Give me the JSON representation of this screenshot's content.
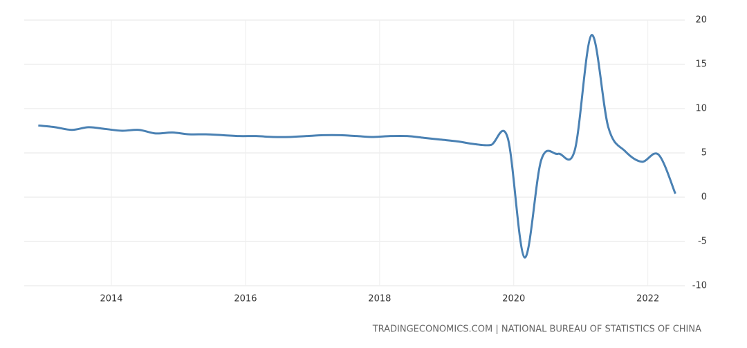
{
  "chart_data": {
    "type": "line",
    "source": "TRADINGECONOMICS.COM | NATIONAL BUREAU OF STATISTICS OF CHINA",
    "x": [
      2012.91,
      2013.16,
      2013.41,
      2013.66,
      2013.91,
      2014.16,
      2014.41,
      2014.66,
      2014.91,
      2015.16,
      2015.41,
      2015.66,
      2015.91,
      2016.16,
      2016.41,
      2016.66,
      2016.91,
      2017.16,
      2017.41,
      2017.66,
      2017.91,
      2018.16,
      2018.41,
      2018.66,
      2018.91,
      2019.16,
      2019.41,
      2019.66,
      2019.91,
      2020.16,
      2020.41,
      2020.66,
      2020.91,
      2021.16,
      2021.41,
      2021.66,
      2021.91,
      2022.16,
      2022.41
    ],
    "series": [
      {
        "color": "#4a81b3",
        "values": [
          8.1,
          7.9,
          7.6,
          7.9,
          7.7,
          7.5,
          7.6,
          7.2,
          7.3,
          7.1,
          7.1,
          7.0,
          6.9,
          6.9,
          6.8,
          6.8,
          6.9,
          7.0,
          7.0,
          6.9,
          6.8,
          6.9,
          6.9,
          6.7,
          6.5,
          6.3,
          6.0,
          5.9,
          6.7,
          -6.8,
          4.2,
          4.9,
          5.3,
          18.3,
          7.9,
          5.2,
          4.0,
          4.8,
          0.4
        ]
      }
    ],
    "xlim": [
      2012.7,
      2022.55
    ],
    "xticks": [
      2014,
      2016,
      2018,
      2020,
      2022
    ],
    "ylim": [
      -10,
      20
    ],
    "yticks": [
      -10,
      -5,
      0,
      5,
      10,
      15,
      20
    ],
    "grid": true
  }
}
